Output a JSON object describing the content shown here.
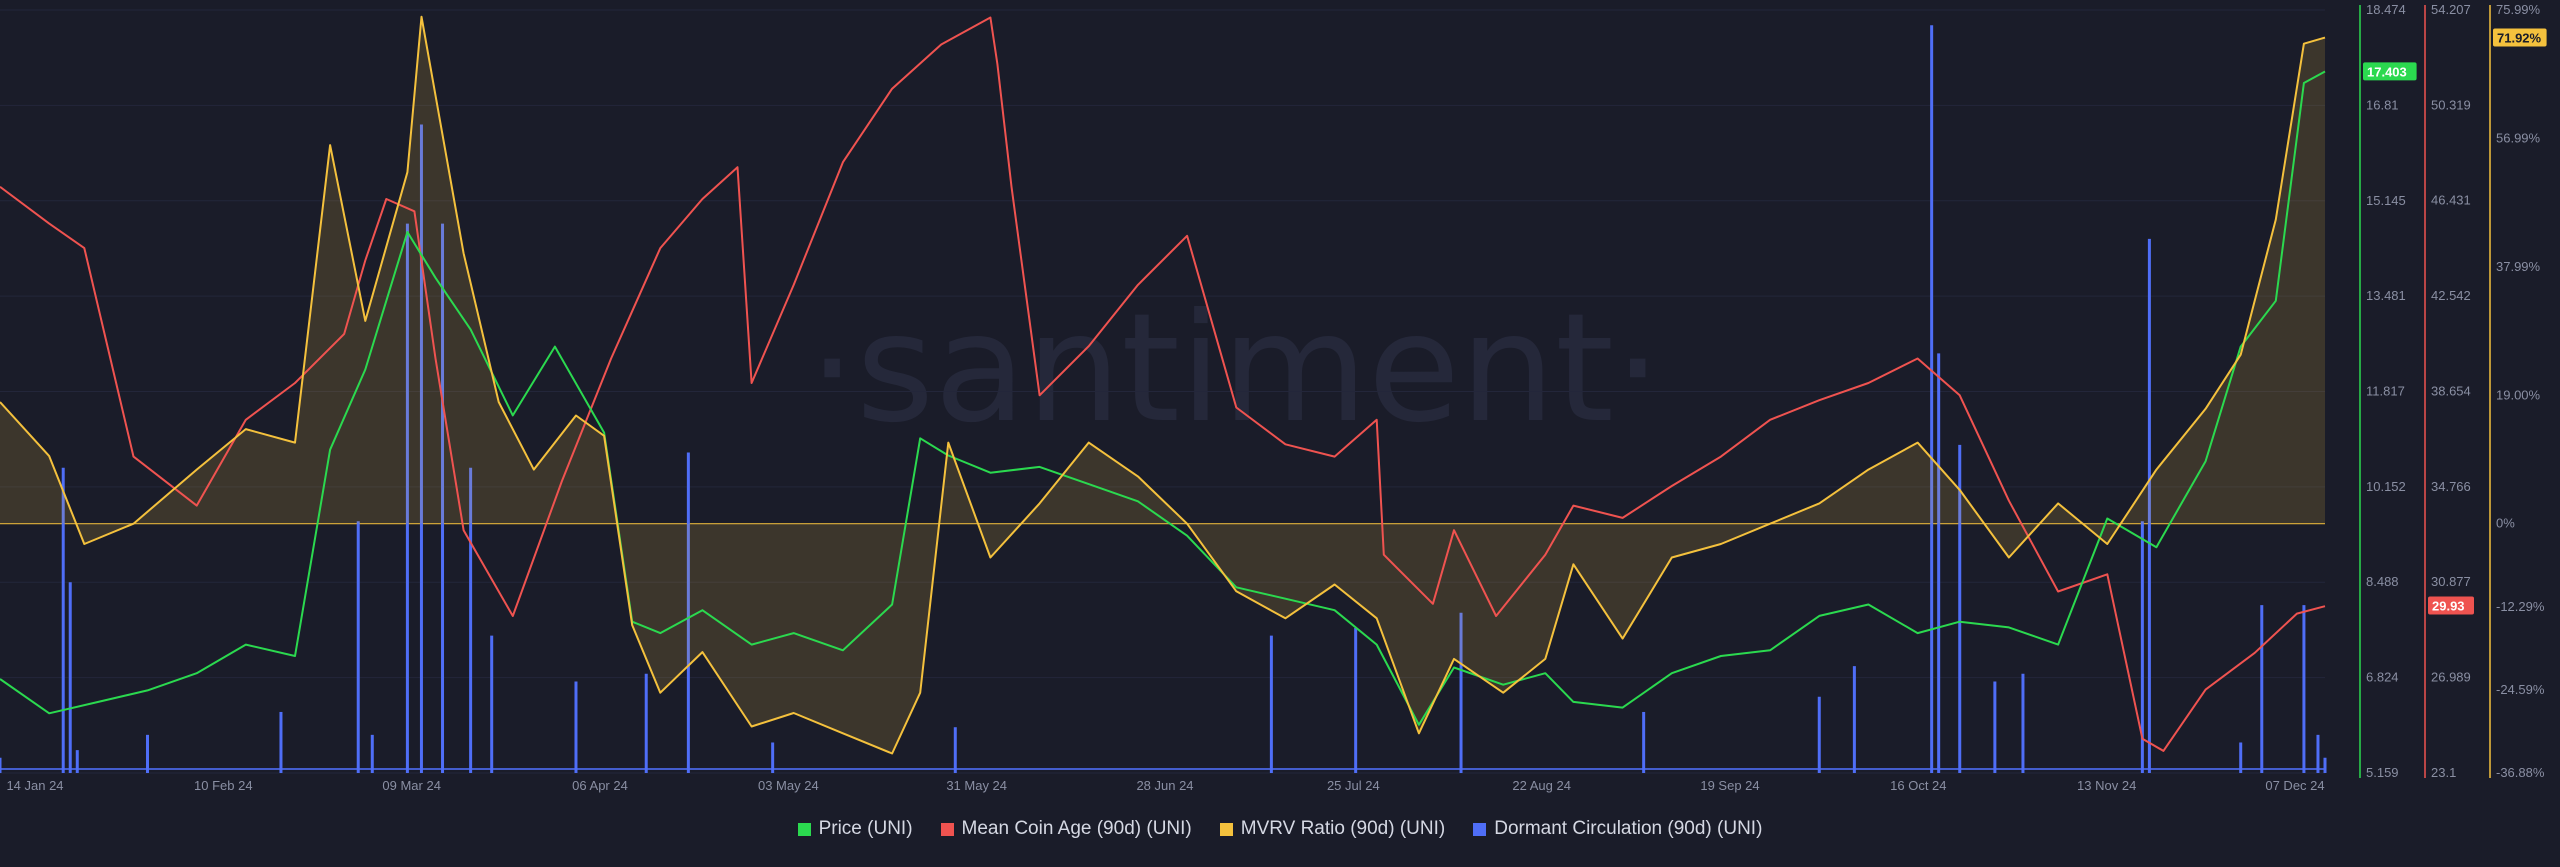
{
  "watermark": "·santiment·",
  "colors": {
    "price": "#2bd94f",
    "coin_age": "#ef5350",
    "mvrv": "#f4c13d",
    "dormant": "#4f6ef7",
    "background": "#1a1c29"
  },
  "legend": [
    {
      "label": "Price (UNI)",
      "color": "#2bd94f"
    },
    {
      "label": "Mean Coin Age (90d) (UNI)",
      "color": "#ef5350"
    },
    {
      "label": "MVRV Ratio (90d) (UNI)",
      "color": "#f4c13d"
    },
    {
      "label": "Dormant Circulation (90d) (UNI)",
      "color": "#4f6ef7"
    }
  ],
  "chart_data": {
    "type": "line",
    "x_range": [
      "2024-01-11",
      "2024-12-07"
    ],
    "x_tick_labels": [
      "14 Jan 24",
      "10 Feb 24",
      "09 Mar 24",
      "06 Apr 24",
      "03 May 24",
      "31 May 24",
      "28 Jun 24",
      "25 Jul 24",
      "22 Aug 24",
      "19 Sep 24",
      "16 Oct 24",
      "13 Nov 24",
      "07 Dec 24"
    ],
    "axes": {
      "price": {
        "ticks": [
          "18.474",
          "16.81",
          "15.145",
          "13.481",
          "11.817",
          "10.152",
          "8.488",
          "6.824",
          "5.159"
        ],
        "min": 5.159,
        "max": 18.474,
        "current_label": "17.403",
        "current": 17.403
      },
      "coin_age": {
        "ticks": [
          "54.207",
          "50.319",
          "46.431",
          "42.542",
          "38.654",
          "34.766",
          "30.877",
          "26.989",
          "23.1"
        ],
        "min": 23.1,
        "max": 54.207,
        "current_label": "29.93",
        "current": 29.93
      },
      "mvrv": {
        "ticks": [
          "75.99%",
          "56.99%",
          "37.99%",
          "19.00%",
          "0%",
          "-12.29%",
          "-24.59%",
          "-36.88%"
        ],
        "min": -36.88,
        "max": 75.99,
        "current_label": "71.92%",
        "current": 71.92
      }
    },
    "series": [
      {
        "name": "Price (UNI)",
        "axis": "price",
        "x": [
          "2024-01-11",
          "2024-01-18",
          "2024-01-25",
          "2024-02-01",
          "2024-02-08",
          "2024-02-15",
          "2024-02-22",
          "2024-02-27",
          "2024-03-03",
          "2024-03-09",
          "2024-03-13",
          "2024-03-18",
          "2024-03-24",
          "2024-03-30",
          "2024-04-06",
          "2024-04-10",
          "2024-04-14",
          "2024-04-20",
          "2024-04-27",
          "2024-05-03",
          "2024-05-10",
          "2024-05-17",
          "2024-05-21",
          "2024-05-25",
          "2024-05-31",
          "2024-06-07",
          "2024-06-14",
          "2024-06-21",
          "2024-06-28",
          "2024-07-05",
          "2024-07-12",
          "2024-07-19",
          "2024-07-25",
          "2024-07-31",
          "2024-08-05",
          "2024-08-12",
          "2024-08-18",
          "2024-08-22",
          "2024-08-29",
          "2024-09-05",
          "2024-09-12",
          "2024-09-19",
          "2024-09-26",
          "2024-10-03",
          "2024-10-10",
          "2024-10-16",
          "2024-10-23",
          "2024-10-30",
          "2024-11-06",
          "2024-11-13",
          "2024-11-20",
          "2024-11-25",
          "2024-11-30",
          "2024-12-04",
          "2024-12-07"
        ],
        "y": [
          6.8,
          6.2,
          6.4,
          6.6,
          6.9,
          7.4,
          7.2,
          10.8,
          12.2,
          14.6,
          13.8,
          12.9,
          11.4,
          12.6,
          11.1,
          7.8,
          7.6,
          8.0,
          7.4,
          7.6,
          7.3,
          8.1,
          11.0,
          10.7,
          10.4,
          10.5,
          10.2,
          9.9,
          9.3,
          8.4,
          8.2,
          8.0,
          7.4,
          6.0,
          7.0,
          6.7,
          6.9,
          6.4,
          6.3,
          6.9,
          7.2,
          7.3,
          7.9,
          8.1,
          7.6,
          7.8,
          7.7,
          7.4,
          9.6,
          9.1,
          10.6,
          12.6,
          13.4,
          17.2,
          17.4
        ]
      },
      {
        "name": "Mean Coin Age (90d) (UNI)",
        "axis": "coin_age",
        "x": [
          "2024-01-11",
          "2024-01-18",
          "2024-01-23",
          "2024-01-30",
          "2024-02-08",
          "2024-02-15",
          "2024-02-22",
          "2024-02-29",
          "2024-03-03",
          "2024-03-06",
          "2024-03-10",
          "2024-03-13",
          "2024-03-17",
          "2024-03-24",
          "2024-03-31",
          "2024-04-07",
          "2024-04-14",
          "2024-04-20",
          "2024-04-25",
          "2024-04-27",
          "2024-05-03",
          "2024-05-10",
          "2024-05-17",
          "2024-05-24",
          "2024-05-31",
          "2024-06-01",
          "2024-06-03",
          "2024-06-07",
          "2024-06-14",
          "2024-06-21",
          "2024-06-28",
          "2024-07-05",
          "2024-07-12",
          "2024-07-19",
          "2024-07-25",
          "2024-07-26",
          "2024-08-02",
          "2024-08-05",
          "2024-08-11",
          "2024-08-18",
          "2024-08-22",
          "2024-08-29",
          "2024-09-05",
          "2024-09-12",
          "2024-09-19",
          "2024-09-26",
          "2024-10-03",
          "2024-10-10",
          "2024-10-16",
          "2024-10-23",
          "2024-10-30",
          "2024-11-06",
          "2024-11-11",
          "2024-11-14",
          "2024-11-20",
          "2024-11-27",
          "2024-12-03",
          "2024-12-07"
        ],
        "y": [
          47,
          45.5,
          44.5,
          36,
          34,
          37.5,
          39,
          41,
          44,
          46.5,
          46,
          40,
          33,
          29.5,
          35,
          40,
          44.5,
          46.5,
          47.8,
          39.0,
          43,
          48,
          51,
          52.8,
          53.9,
          52,
          47,
          38.5,
          40.5,
          43,
          45,
          38,
          36.5,
          36,
          37.5,
          32,
          30,
          33,
          29.5,
          32,
          34,
          33.5,
          34.8,
          36,
          37.5,
          38.3,
          39,
          40,
          38.5,
          34.2,
          30.5,
          31.2,
          24.5,
          24,
          26.5,
          28.0,
          29.6,
          29.9
        ]
      },
      {
        "name": "MVRV Ratio (90d) (UNI)",
        "axis": "mvrv",
        "x": [
          "2024-01-11",
          "2024-01-18",
          "2024-01-23",
          "2024-01-30",
          "2024-02-08",
          "2024-02-15",
          "2024-02-22",
          "2024-02-27",
          "2024-03-03",
          "2024-03-09",
          "2024-03-11",
          "2024-03-17",
          "2024-03-22",
          "2024-03-27",
          "2024-04-02",
          "2024-04-06",
          "2024-04-10",
          "2024-04-14",
          "2024-04-20",
          "2024-04-27",
          "2024-05-03",
          "2024-05-10",
          "2024-05-17",
          "2024-05-21",
          "2024-05-25",
          "2024-05-31",
          "2024-06-07",
          "2024-06-14",
          "2024-06-21",
          "2024-06-28",
          "2024-07-05",
          "2024-07-12",
          "2024-07-19",
          "2024-07-25",
          "2024-07-31",
          "2024-08-05",
          "2024-08-12",
          "2024-08-18",
          "2024-08-22",
          "2024-08-29",
          "2024-09-05",
          "2024-09-12",
          "2024-09-19",
          "2024-09-26",
          "2024-10-03",
          "2024-10-10",
          "2024-10-16",
          "2024-10-23",
          "2024-10-30",
          "2024-11-06",
          "2024-11-13",
          "2024-11-20",
          "2024-11-25",
          "2024-11-30",
          "2024-12-04",
          "2024-12-07"
        ],
        "y": [
          18,
          10,
          -3,
          0,
          8,
          14,
          12,
          56,
          30,
          52,
          75,
          40,
          18,
          8,
          16,
          13,
          -15,
          -25,
          -19,
          -30,
          -28,
          -31,
          -34,
          -25,
          12,
          -5,
          3,
          12,
          7,
          0,
          -10,
          -14,
          -9,
          -14,
          -31,
          -20,
          -25,
          -20,
          -6,
          -17,
          -5,
          -3,
          0,
          3,
          8,
          12,
          5,
          -5,
          3,
          -3,
          8,
          17,
          25,
          45,
          71,
          71.9
        ]
      },
      {
        "name": "Dormant Circulation (90d) (UNI)",
        "axis": "dormant",
        "type": "spike",
        "x": [
          "2024-01-11",
          "2024-01-20",
          "2024-01-21",
          "2024-01-22",
          "2024-02-01",
          "2024-02-20",
          "2024-03-02",
          "2024-03-04",
          "2024-03-09",
          "2024-03-11",
          "2024-03-14",
          "2024-03-18",
          "2024-03-21",
          "2024-04-02",
          "2024-04-12",
          "2024-04-18",
          "2024-04-30",
          "2024-05-26",
          "2024-07-10",
          "2024-07-22",
          "2024-08-06",
          "2024-09-01",
          "2024-09-26",
          "2024-10-01",
          "2024-10-12",
          "2024-10-13",
          "2024-10-16",
          "2024-10-21",
          "2024-10-25",
          "2024-11-11",
          "2024-11-12",
          "2024-11-25",
          "2024-11-28",
          "2024-12-04",
          "2024-12-06",
          "2024-12-07"
        ],
        "y": [
          0.02,
          0.4,
          0.25,
          0.03,
          0.05,
          0.08,
          0.33,
          0.05,
          0.72,
          0.85,
          0.72,
          0.4,
          0.18,
          0.12,
          0.13,
          0.42,
          0.04,
          0.06,
          0.18,
          0.19,
          0.21,
          0.08,
          0.1,
          0.14,
          0.98,
          0.55,
          0.43,
          0.12,
          0.13,
          0.33,
          0.7,
          0.04,
          0.22,
          0.22,
          0.05,
          0.02
        ]
      }
    ]
  }
}
